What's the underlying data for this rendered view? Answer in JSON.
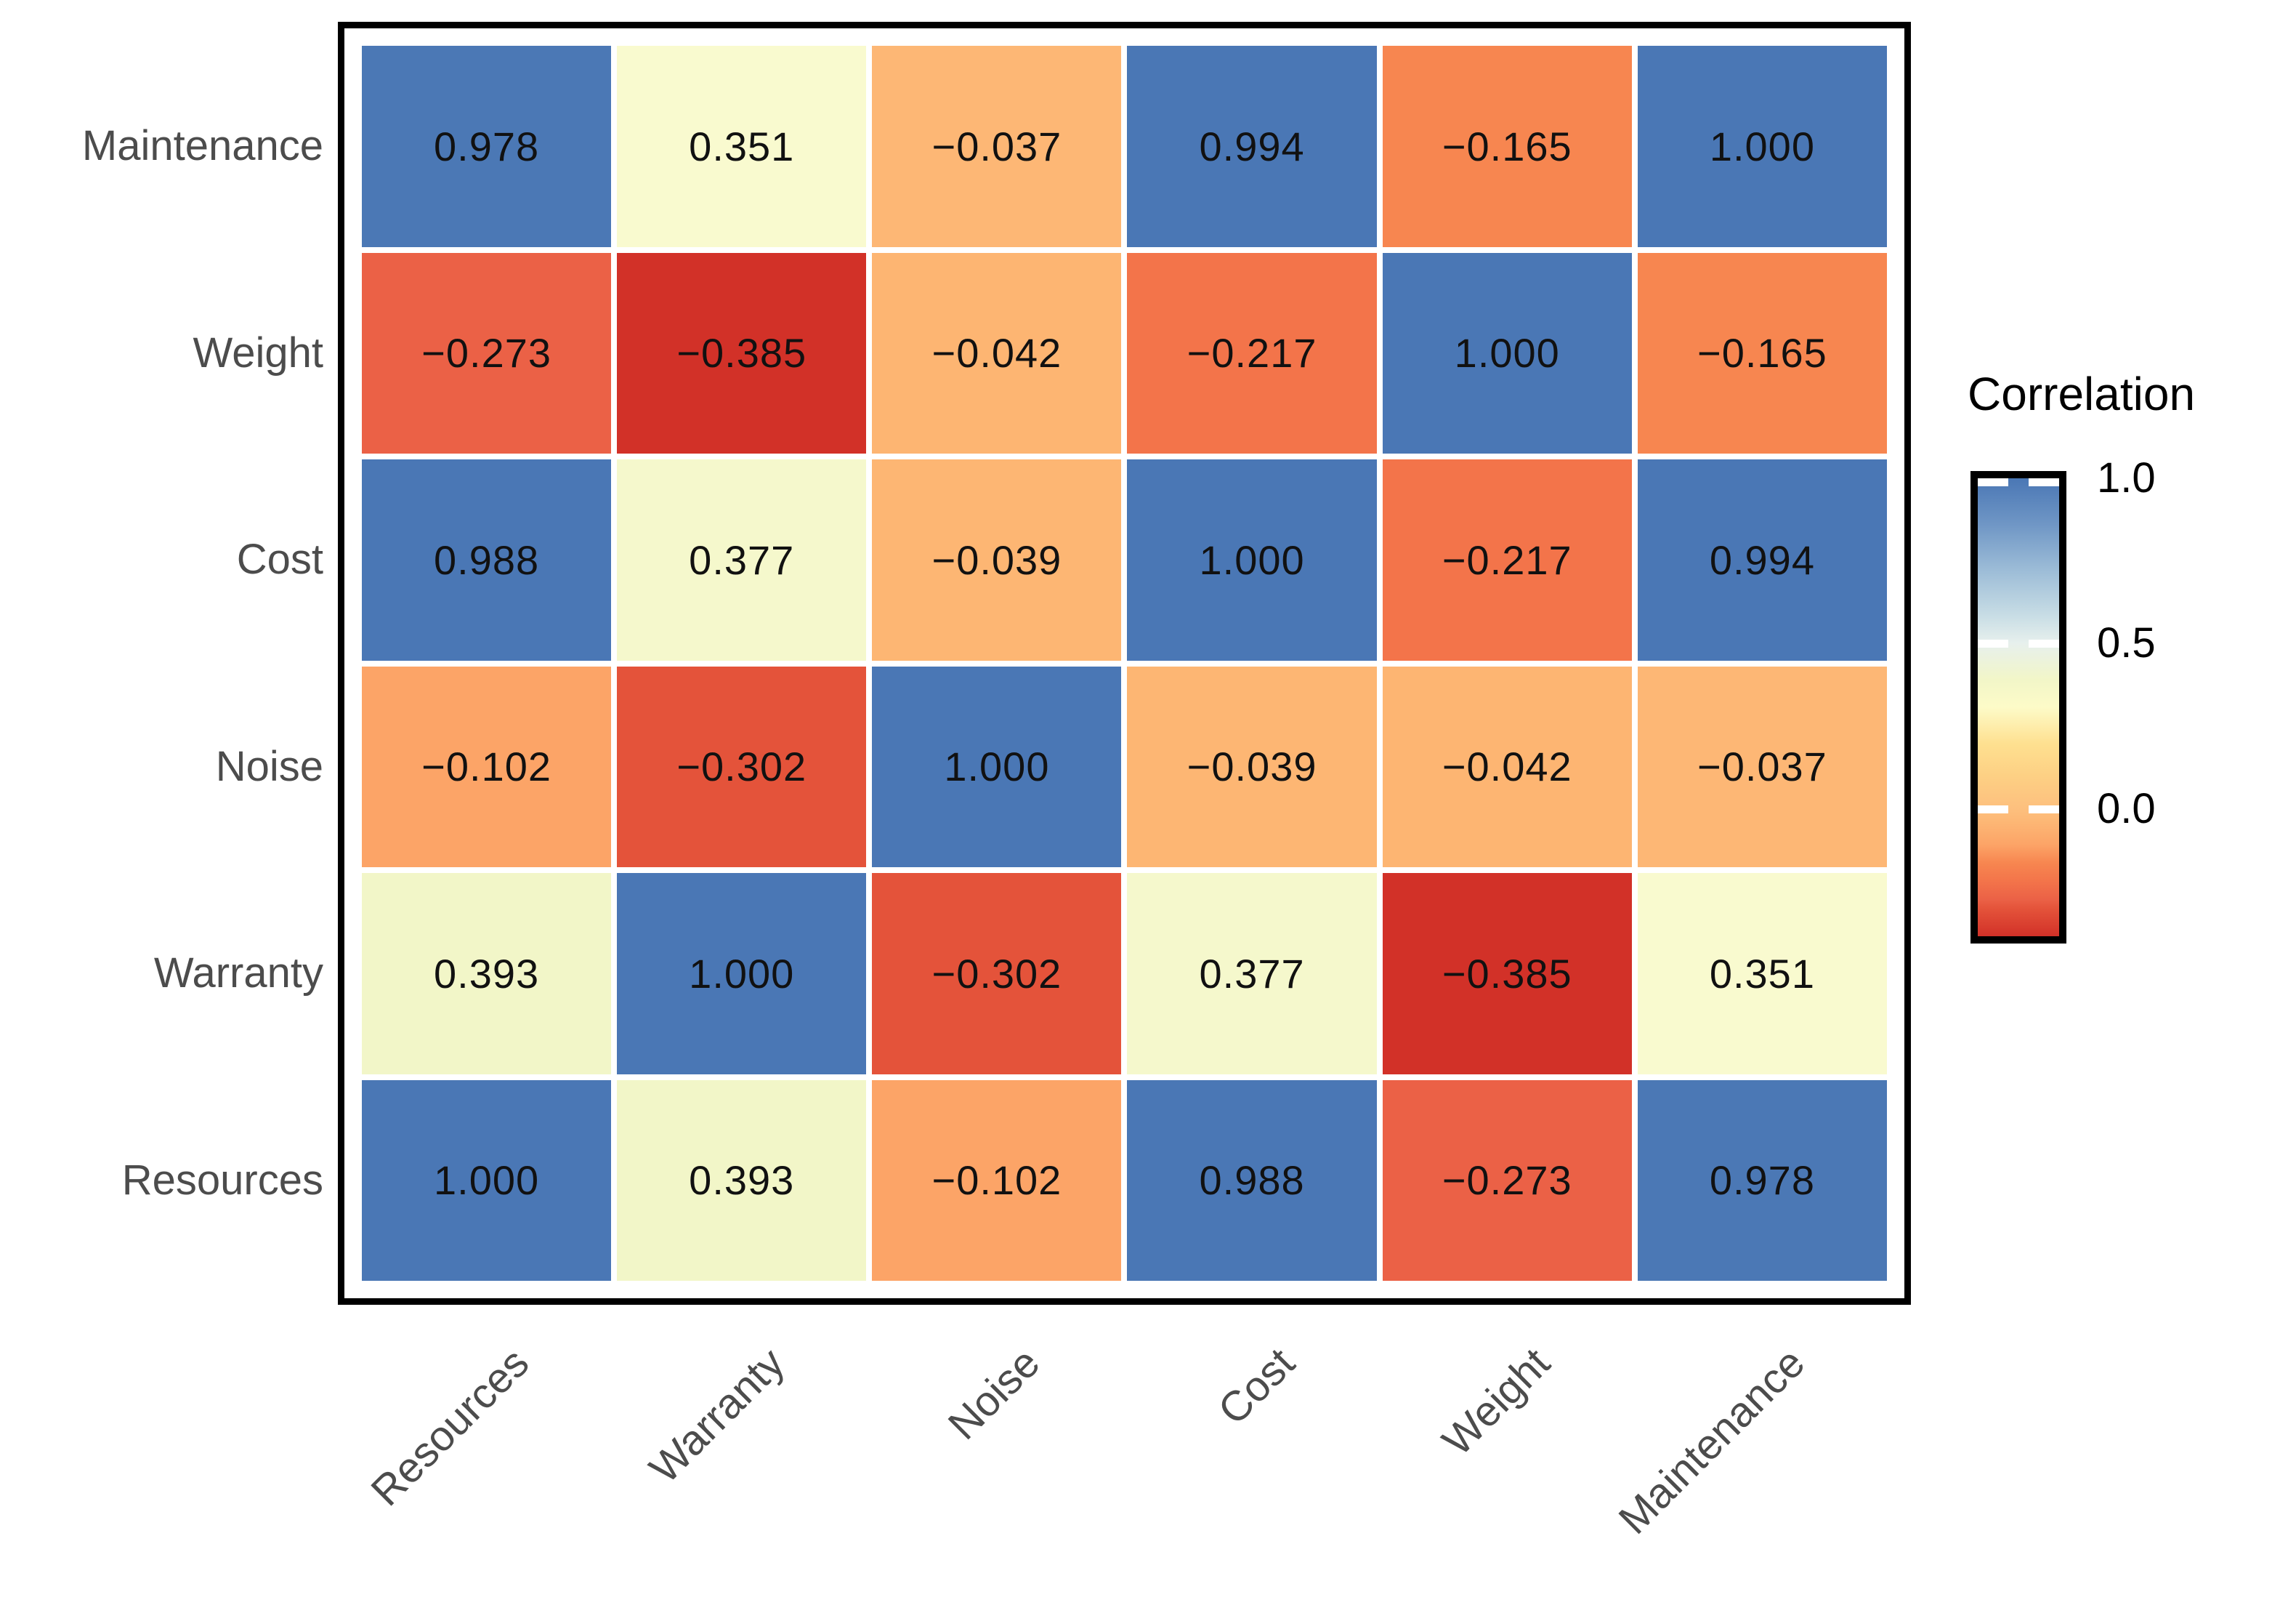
{
  "chart_data": {
    "type": "heatmap",
    "title": "",
    "rows": [
      "Maintenance",
      "Weight",
      "Cost",
      "Noise",
      "Warranty",
      "Resources"
    ],
    "columns": [
      "Resources",
      "Warranty",
      "Noise",
      "Cost",
      "Weight",
      "Maintenance"
    ],
    "matrix": [
      [
        0.978,
        0.351,
        -0.037,
        0.994,
        -0.165,
        1.0
      ],
      [
        -0.273,
        -0.385,
        -0.042,
        -0.217,
        1.0,
        -0.165
      ],
      [
        0.988,
        0.377,
        -0.039,
        1.0,
        -0.217,
        0.994
      ],
      [
        -0.102,
        -0.302,
        1.0,
        -0.039,
        -0.042,
        -0.037
      ],
      [
        0.393,
        1.0,
        -0.302,
        0.377,
        -0.385,
        0.351
      ],
      [
        1.0,
        0.393,
        -0.102,
        0.988,
        -0.273,
        0.978
      ]
    ],
    "decimals": 3,
    "cell_text_color": "#111111",
    "axis_label_color": "#4c4c4c",
    "value_colors": {
      "1.000": "#4a77b5",
      "0.994": "#4a77b5",
      "0.988": "#4a77b5",
      "0.978": "#4b78b5",
      "0.393": "#f2f6c8",
      "0.377": "#f5f8cc",
      "0.351": "#f9facf",
      "-0.037": "#fdb775",
      "-0.039": "#fdb673",
      "-0.042": "#fdb572",
      "-0.102": "#fca467",
      "-0.165": "#f78650",
      "-0.217": "#f3744a",
      "-0.273": "#eb6146",
      "-0.302": "#e4533a",
      "-0.385": "#d23128"
    },
    "legend": {
      "title": "Correlation",
      "range": [
        -0.385,
        1.0
      ],
      "ticks": [
        {
          "label": "1.0",
          "value": 1.0
        },
        {
          "label": "0.5",
          "value": 0.5
        },
        {
          "label": "0.0",
          "value": 0.0
        }
      ],
      "gradient_stops": [
        [
          "0%",
          "#4a77b5"
        ],
        [
          "10%",
          "#6f96c5"
        ],
        [
          "20%",
          "#9cbcd7"
        ],
        [
          "30%",
          "#c8dde5"
        ],
        [
          "36%",
          "#e7f0ed"
        ],
        [
          "44%",
          "#f2f6c8"
        ],
        [
          "50%",
          "#fdfbc8"
        ],
        [
          "58%",
          "#fee090"
        ],
        [
          "65%",
          "#fdd084"
        ],
        [
          "72%",
          "#fdc07e"
        ],
        [
          "75%",
          "#fdb775"
        ],
        [
          "80%",
          "#fca467"
        ],
        [
          "84%",
          "#f78650"
        ],
        [
          "88%",
          "#f3744a"
        ],
        [
          "92%",
          "#eb6146"
        ],
        [
          "94%",
          "#e4533a"
        ],
        [
          "100%",
          "#d23128"
        ]
      ]
    }
  }
}
